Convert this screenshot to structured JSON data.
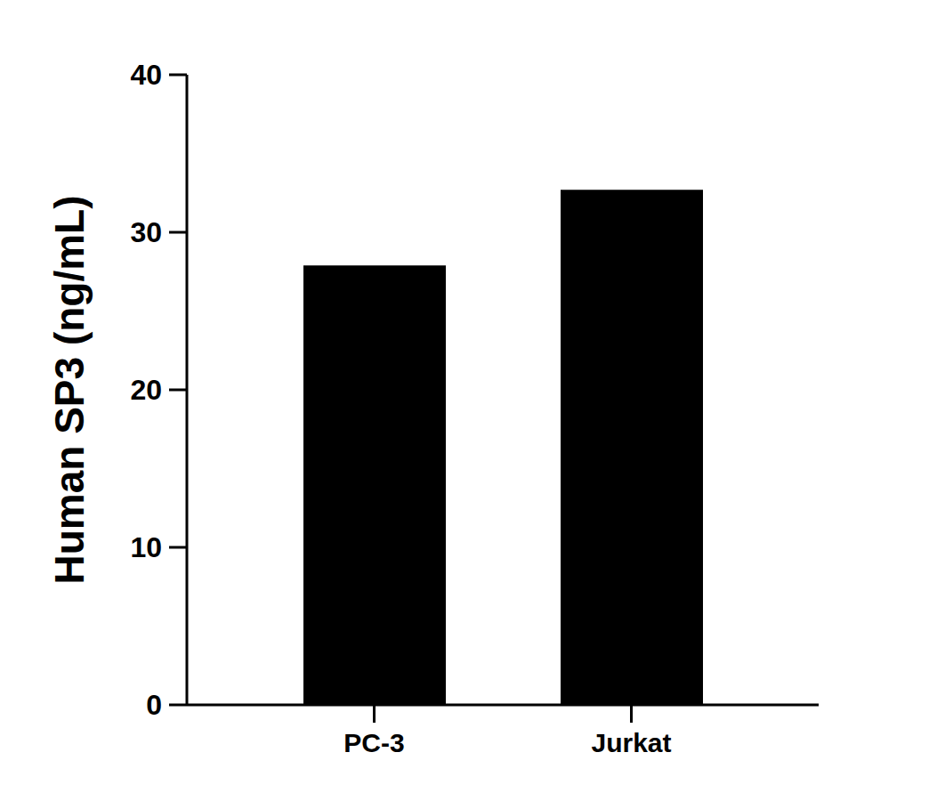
{
  "chart_data": {
    "type": "bar",
    "y_label": "Human SP3 (ng/mL)",
    "categories": [
      "PC-3",
      "Jurkat"
    ],
    "values": [
      27.9,
      32.7
    ],
    "color": "#000000",
    "ylim": [
      0,
      40
    ],
    "yticks": [
      0,
      10,
      20,
      30,
      40
    ],
    "grid": false,
    "data_labels": false
  }
}
